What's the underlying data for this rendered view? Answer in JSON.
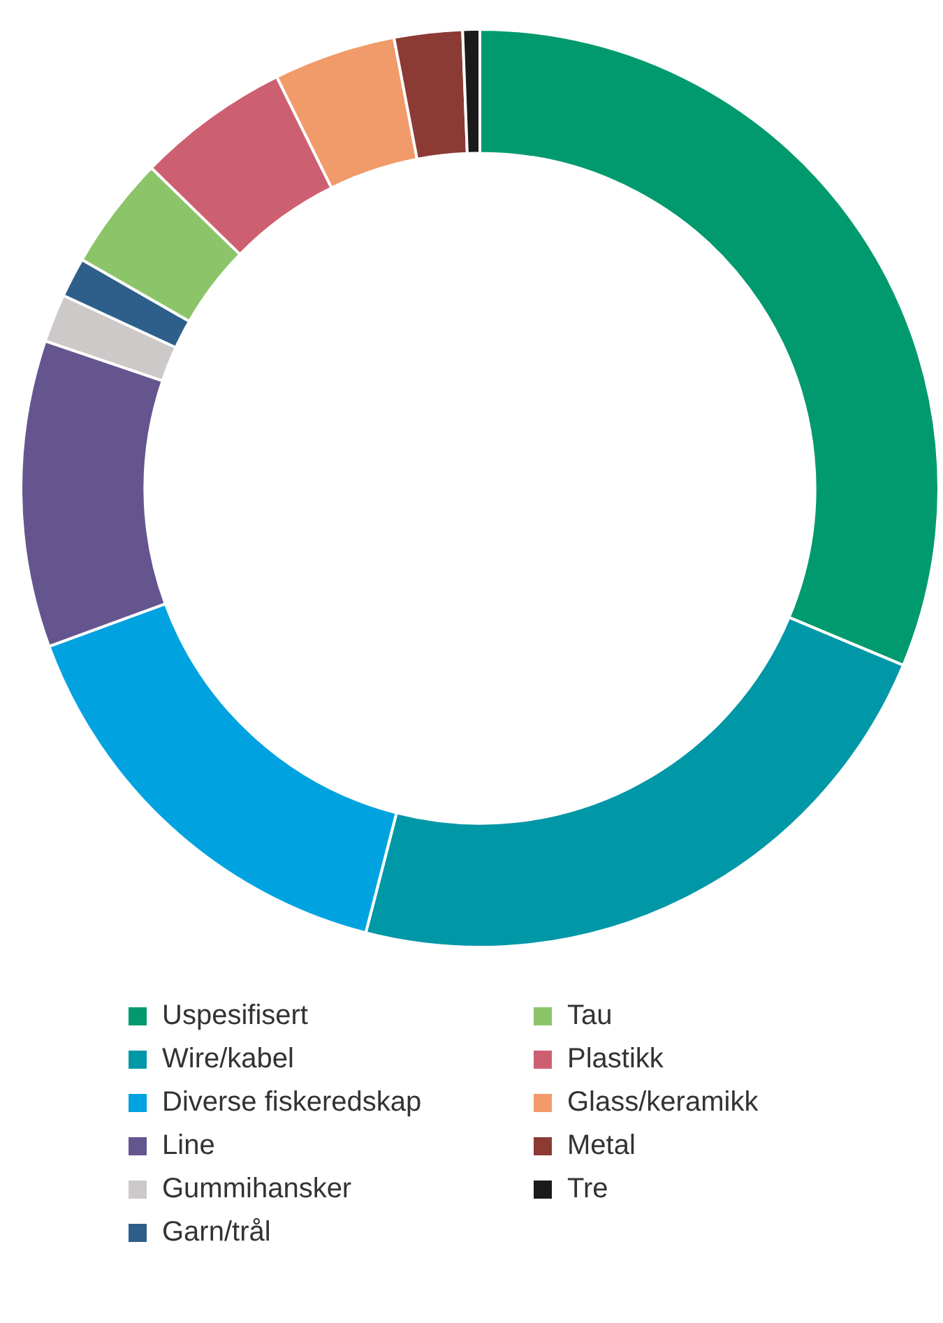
{
  "chart_data": {
    "type": "donut",
    "categories": [
      "Uspesifisert",
      "Wire/kabel",
      "Diverse fiskeredskap",
      "Line",
      "Gummihansker",
      "Garn/trål",
      "Tau",
      "Plastikk",
      "Glass/keramikk",
      "Metal",
      "Tre"
    ],
    "values": [
      31.3,
      22.7,
      15.4,
      10.8,
      1.7,
      1.4,
      4.0,
      5.4,
      4.3,
      2.4,
      0.6
    ],
    "colors": [
      "#009a6e",
      "#0097a7",
      "#00a3e0",
      "#65558f",
      "#cdc9c9",
      "#2e5f8a",
      "#8cc46a",
      "#cd6070",
      "#f19a6a",
      "#8b3a34",
      "#1a1a1a"
    ],
    "legend": "bottom"
  }
}
